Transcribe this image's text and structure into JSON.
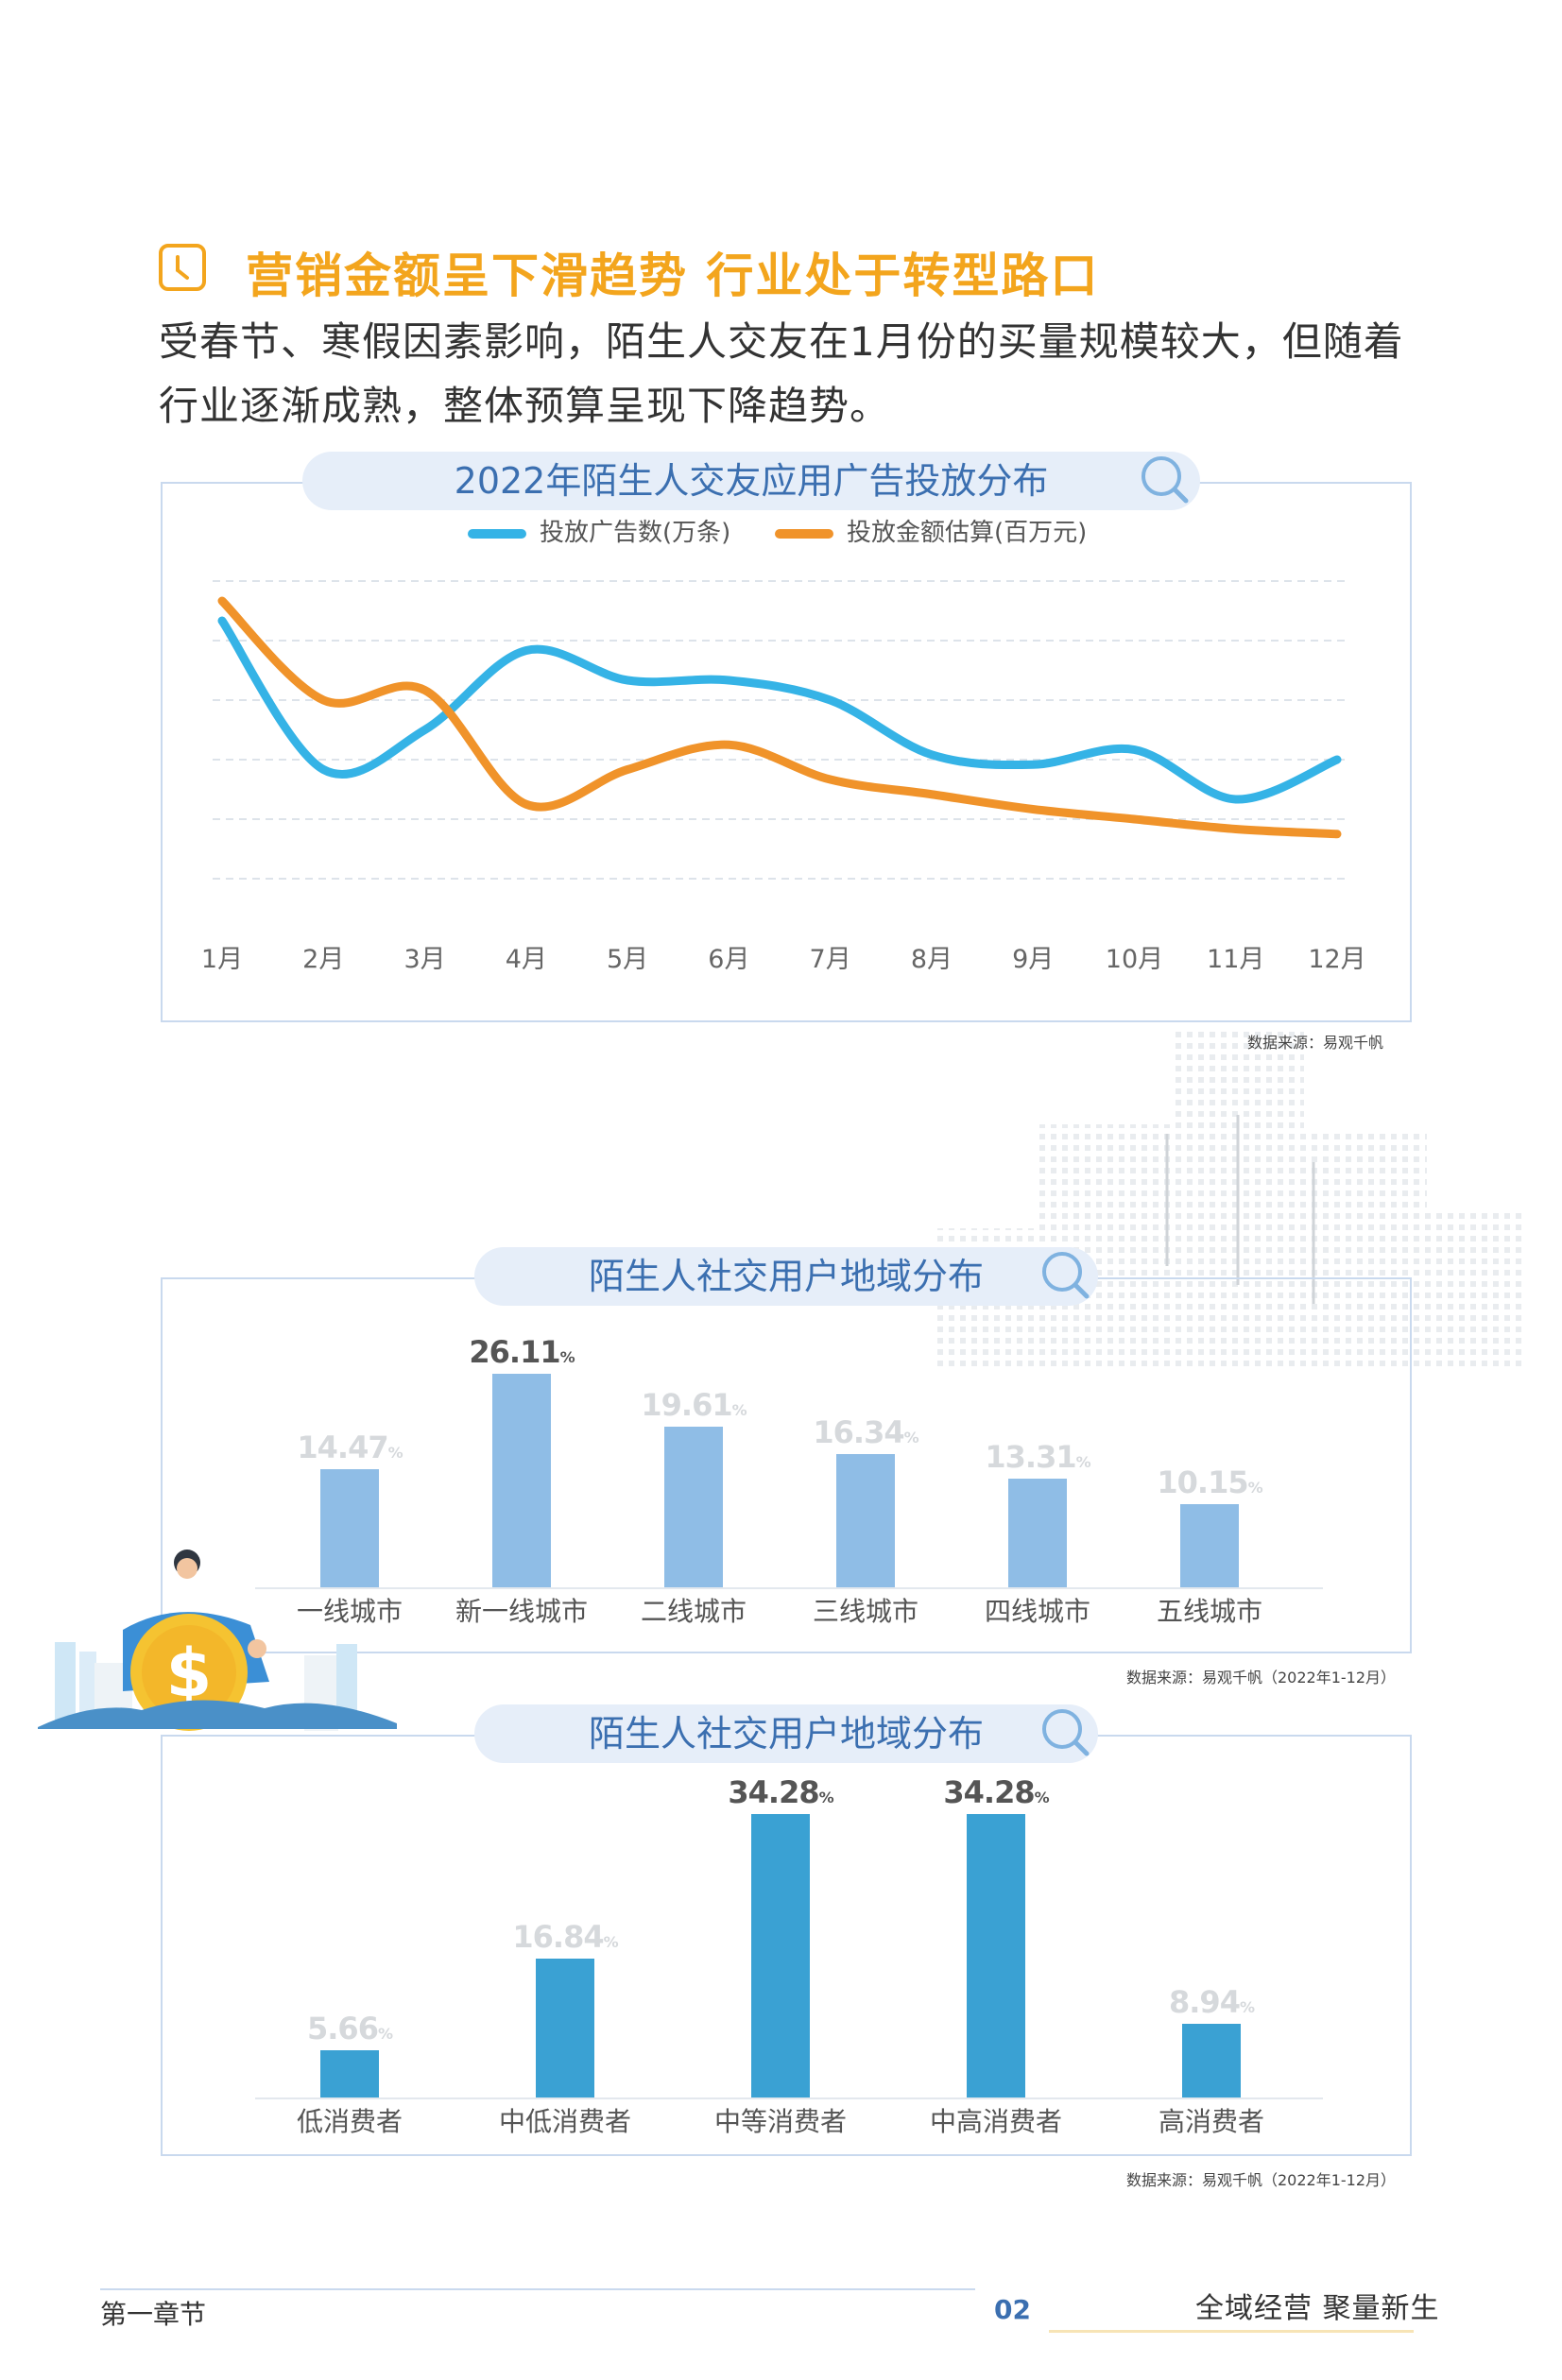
{
  "section": {
    "title": "营销金额呈下滑趋势 行业处于转型路口",
    "intro": "受春节、寒假因素影响，陌生人交友在1月份的买量规模较大，但随着行业逐渐成熟，整体预算呈现下降趋势。"
  },
  "colors": {
    "accent": "#f3a51d",
    "blue_line": "#35b3e6",
    "orange_line": "#f0932a",
    "bar_light": "#8fbde6",
    "bar_dark": "#3aa1d3",
    "title_blue": "#3b6fb0"
  },
  "chart1": {
    "title": "2022年陌生人交友应用广告投放分布",
    "source": "数据来源：易观千帆"
  },
  "chart2": {
    "title": "陌生人社交用户地域分布",
    "source": "数据来源：易观千帆（2022年1-12月）"
  },
  "chart3": {
    "title": "陌生人社交用户地域分布",
    "source": "数据来源：易观千帆（2022年1-12月）"
  },
  "chart_data": [
    {
      "type": "line",
      "title": "2022年陌生人交友应用广告投放分布",
      "x": [
        "1月",
        "2月",
        "3月",
        "4月",
        "5月",
        "6月",
        "7月",
        "8月",
        "9月",
        "10月",
        "11月",
        "12月"
      ],
      "series": [
        {
          "name": "投放广告数(万条)",
          "values": [
            5.2,
            2.2,
            3.0,
            4.6,
            4.0,
            4.0,
            3.6,
            2.5,
            2.3,
            2.6,
            1.6,
            2.4
          ]
        },
        {
          "name": "投放金额估算(百万元)",
          "values": [
            5.6,
            3.6,
            3.8,
            1.5,
            2.2,
            2.7,
            2.0,
            1.7,
            1.4,
            1.2,
            1.0,
            0.9
          ]
        }
      ],
      "ylim": [
        0,
        6
      ],
      "grid": true,
      "legend": "top-center"
    },
    {
      "type": "bar",
      "title": "陌生人社交用户地域分布",
      "categories": [
        "一线城市",
        "新一线城市",
        "二线城市",
        "三线城市",
        "四线城市",
        "五线城市"
      ],
      "values": [
        14.47,
        26.11,
        19.61,
        16.34,
        13.31,
        10.15
      ],
      "unit": "%"
    },
    {
      "type": "bar",
      "title": "陌生人社交用户地域分布",
      "categories": [
        "低消费者",
        "中低消费者",
        "中等消费者",
        "中高消费者",
        "高消费者"
      ],
      "values": [
        5.66,
        16.84,
        34.28,
        34.28,
        8.94
      ],
      "unit": "%"
    }
  ],
  "illustration": {
    "coin_symbol": "$"
  },
  "footer": {
    "chapter": "第一章节",
    "page": "02",
    "slogan": "全域经营 聚量新生"
  }
}
